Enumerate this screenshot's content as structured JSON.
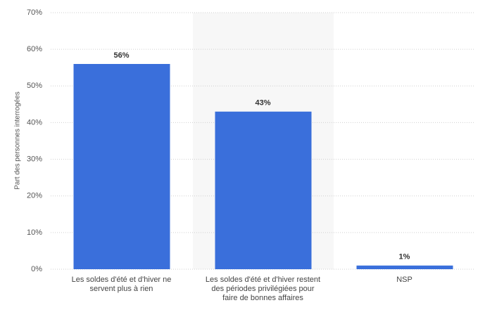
{
  "chart_data": {
    "type": "bar",
    "y_label": "Part des personnes interrogées",
    "categories": [
      "Les soldes d'été et d'hiver ne servent plus à rien",
      "Les soldes d'été et d'hiver restent des périodes privilégiées pour faire de bonnes affaires",
      "NSP"
    ],
    "values": [
      56,
      43,
      1
    ],
    "value_labels": [
      "56%",
      "43%",
      "1%"
    ],
    "color": "#3a6fdb",
    "ylim": [
      0,
      70
    ],
    "yticks": [
      {
        "value": 0,
        "label": "0%"
      },
      {
        "value": 10,
        "label": "10%"
      },
      {
        "value": 20,
        "label": "20%"
      },
      {
        "value": 30,
        "label": "30%"
      },
      {
        "value": 40,
        "label": "40%"
      },
      {
        "value": 50,
        "label": "50%"
      },
      {
        "value": 60,
        "label": "60%"
      },
      {
        "value": 70,
        "label": "70%"
      }
    ],
    "grid": true
  }
}
